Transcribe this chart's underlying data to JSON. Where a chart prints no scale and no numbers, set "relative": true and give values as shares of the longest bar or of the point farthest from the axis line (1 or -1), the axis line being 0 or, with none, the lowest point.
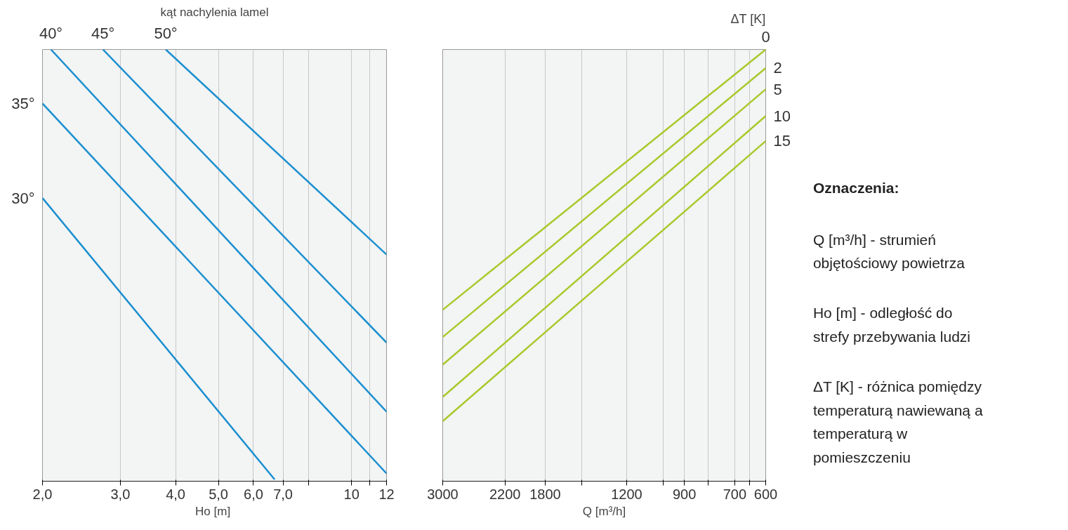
{
  "chart_data": [
    {
      "type": "line",
      "legend_title": "kąt nachylenia lamel",
      "xlabel": "Ho  [m]",
      "log": "x",
      "relative": true,
      "grid": "x",
      "xlim": [
        2,
        12
      ],
      "xticks": [
        {
          "value": 2,
          "label": "2,0"
        },
        {
          "value": 3,
          "label": "3,0"
        },
        {
          "value": 4,
          "label": "4,0"
        },
        {
          "value": 5,
          "label": "5,0"
        },
        {
          "value": 6,
          "label": "6,0"
        },
        {
          "value": 7,
          "label": "7,0"
        },
        {
          "value": 8,
          "label": null
        },
        10,
        {
          "value": 11,
          "label": null
        },
        12
      ],
      "series": [
        {
          "name": "40°",
          "color": "#1a8fd0",
          "x": [
            2.09,
            12
          ],
          "values": [
            1,
            0.161
          ]
        },
        {
          "name": "45°",
          "color": "#1a8fd0",
          "x": [
            2.74,
            12
          ],
          "values": [
            1,
            0.321
          ]
        },
        {
          "name": "50°",
          "color": "#1a8fd0",
          "x": [
            3.8,
            12
          ],
          "values": [
            1,
            0.525
          ]
        },
        {
          "name": "35°",
          "color": "#1a8fd0",
          "x": [
            2,
            12
          ],
          "values": [
            0.875,
            0.018
          ]
        },
        {
          "name": "30°",
          "color": "#1a8fd0",
          "x": [
            2,
            6.7
          ],
          "values": [
            0.656,
            0.004
          ]
        }
      ]
    },
    {
      "type": "line",
      "legend_title": "ΔT [K]",
      "xlabel": "Q [m³/h]",
      "log": "x",
      "relative": true,
      "grid": "x",
      "xlim": [
        3000,
        600
      ],
      "xticks": [
        3000,
        2200,
        1800,
        {
          "value": 1500,
          "label": null
        },
        1200,
        {
          "value": 1000,
          "label": null
        },
        900,
        {
          "value": 800,
          "label": null
        },
        700,
        {
          "value": 650,
          "label": null
        },
        600
      ],
      "series": [
        {
          "name": "0",
          "color": "#a8c92a",
          "x": [
            600,
            3000
          ],
          "values": [
            1,
            0.397
          ]
        },
        {
          "name": "2",
          "color": "#a8c92a",
          "x": [
            600,
            3000
          ],
          "values": [
            0.957,
            0.334
          ]
        },
        {
          "name": "5",
          "color": "#a8c92a",
          "x": [
            600,
            3000
          ],
          "values": [
            0.908,
            0.27
          ]
        },
        {
          "name": "10",
          "color": "#a8c92a",
          "x": [
            600,
            3000
          ],
          "values": [
            0.846,
            0.195
          ]
        },
        {
          "name": "15",
          "color": "#a8c92a",
          "x": [
            600,
            3000
          ],
          "values": [
            0.788,
            0.139
          ]
        }
      ]
    },
    {
      "type": "other",
      "title": "Oznaczenia:",
      "annotations": [
        "Q [m³/h] - strumień objętościowy powietrza",
        "Ho [m] - odległość do strefy przebywania ludzi",
        "ΔT [K] - różnica pomiędzy temperaturą nawiewaną a temperaturą w pomieszczeniu"
      ]
    }
  ]
}
